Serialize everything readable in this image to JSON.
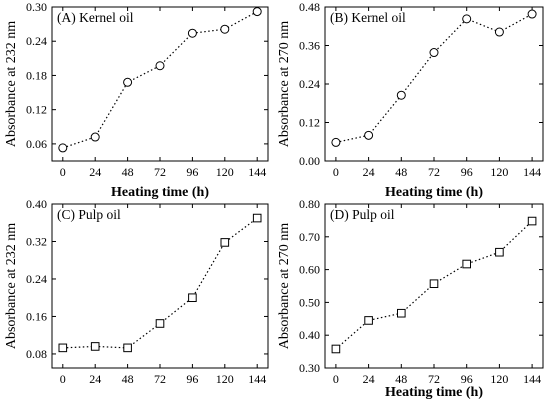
{
  "chart_data": [
    {
      "type": "line",
      "panel_label": "(A) Kernel oil",
      "xlabel": "Heating time (h)",
      "ylabel": "Absorbance at 232 nm",
      "x": [
        0,
        24,
        48,
        72,
        96,
        120,
        144
      ],
      "xticks": [
        "0",
        "24",
        "48",
        "72",
        "96",
        "120",
        "144"
      ],
      "xlim": [
        -8,
        152
      ],
      "ylim": [
        0.03,
        0.3
      ],
      "yticks": [
        "0.06",
        "0.12",
        "0.18",
        "0.24",
        "0.30"
      ],
      "marker": "circle",
      "values": [
        0.053,
        0.072,
        0.168,
        0.197,
        0.254,
        0.261,
        0.292
      ]
    },
    {
      "type": "line",
      "panel_label": "(B) Kernel oil",
      "xlabel": "Heating time (h)",
      "ylabel": "Absorbance at 270 nm",
      "x": [
        0,
        24,
        48,
        72,
        96,
        120,
        144
      ],
      "xticks": [
        "0",
        "24",
        "48",
        "72",
        "96",
        "120",
        "144"
      ],
      "xlim": [
        -8,
        152
      ],
      "ylim": [
        0.0,
        0.48
      ],
      "yticks": [
        "0.00",
        "0.12",
        "0.24",
        "0.36",
        "0.48"
      ],
      "marker": "circle",
      "values": [
        0.058,
        0.08,
        0.205,
        0.338,
        0.443,
        0.402,
        0.458
      ]
    },
    {
      "type": "line",
      "panel_label": "(C) Pulp oil",
      "xlabel": "",
      "ylabel": "Absorbance at 232 nm",
      "x": [
        0,
        24,
        48,
        72,
        96,
        120,
        144
      ],
      "xticks": [
        "0",
        "24",
        "48",
        "72",
        "96",
        "120",
        "144"
      ],
      "xlim": [
        -8,
        152
      ],
      "ylim": [
        0.05,
        0.4
      ],
      "yticks": [
        "0.08",
        "0.16",
        "0.24",
        "0.32",
        "0.40"
      ],
      "marker": "square",
      "values": [
        0.093,
        0.096,
        0.093,
        0.145,
        0.2,
        0.318,
        0.37
      ]
    },
    {
      "type": "line",
      "panel_label": "(D) Pulp oil",
      "xlabel": "Heating time (h)",
      "ylabel": "Absorbance at 270 nm",
      "x": [
        0,
        24,
        48,
        72,
        96,
        120,
        144
      ],
      "xticks": [
        "0",
        "24",
        "48",
        "72",
        "96",
        "120",
        "144"
      ],
      "xlim": [
        -8,
        152
      ],
      "ylim": [
        0.3,
        0.8
      ],
      "yticks": [
        "0.30",
        "0.40",
        "0.50",
        "0.60",
        "0.70",
        "0.80"
      ],
      "marker": "square",
      "values": [
        0.358,
        0.445,
        0.467,
        0.557,
        0.617,
        0.653,
        0.748
      ]
    }
  ]
}
